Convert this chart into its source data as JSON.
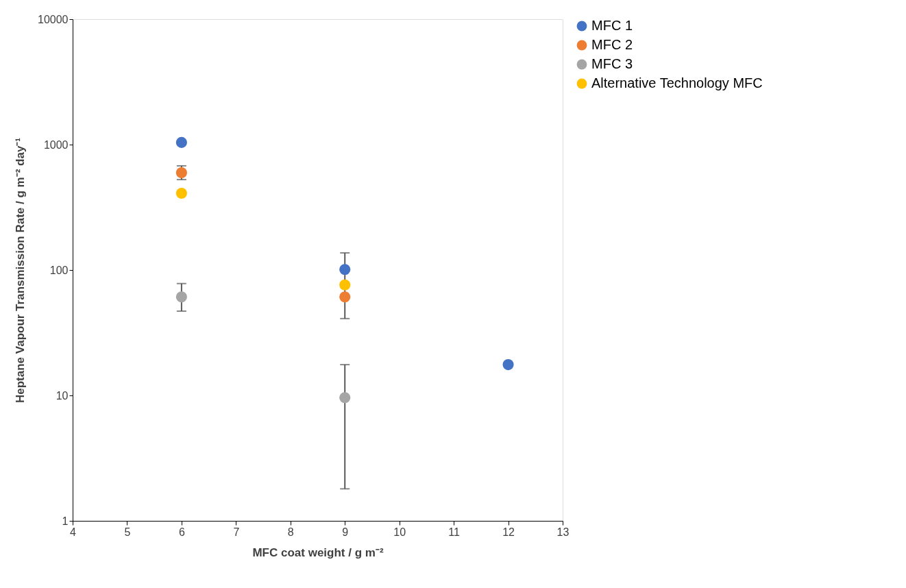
{
  "chart_data": {
    "type": "scatter",
    "xlabel": "MFC coat weight / g m⁻²",
    "ylabel": "Heptane Vapour Transmission Rate / g m⁻² day⁻¹",
    "xlim": [
      4,
      13
    ],
    "xticks": [
      4,
      5,
      6,
      7,
      8,
      9,
      10,
      11,
      12,
      13
    ],
    "ylim": [
      1,
      10000
    ],
    "yticks": [
      1,
      10,
      100,
      1000,
      10000
    ],
    "log": "y",
    "grid": false,
    "legend": "right",
    "marker": "circle",
    "series": [
      {
        "name": "MFC 1",
        "color": "#4472c4",
        "x": [
          6,
          9,
          12
        ],
        "values": [
          1040,
          101,
          17.6
        ],
        "errors": [
          null,
          [
            41,
            137
          ],
          null
        ]
      },
      {
        "name": "MFC 2",
        "color": "#ed7d31",
        "x": [
          6,
          9
        ],
        "values": [
          597,
          61
        ],
        "errors": [
          [
            526,
            677
          ],
          null
        ]
      },
      {
        "name": "MFC 3",
        "color": "#a5a5a5",
        "x": [
          6,
          9
        ],
        "values": [
          61,
          9.6
        ],
        "errors": [
          [
            47,
            78
          ],
          [
            1.8,
            17.6
          ]
        ]
      },
      {
        "name": "Alternative Technology MFC",
        "color": "#ffc000",
        "x": [
          6,
          9
        ],
        "values": [
          409,
          76
        ],
        "errors": [
          null,
          null
        ]
      }
    ]
  }
}
